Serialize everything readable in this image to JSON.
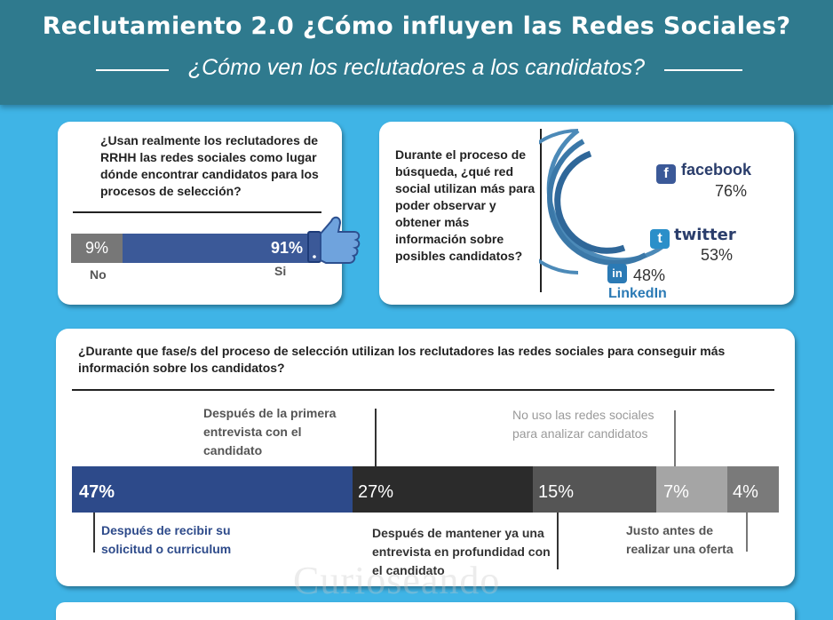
{
  "header": {
    "title": "Reclutamiento 2.0  ¿Cómo influyen las Redes Sociales?",
    "subtitle": "¿Cómo ven los reclutadores a los candidatos?"
  },
  "card_usage": {
    "question": "¿Usan realmente los reclutadores de RRHH las redes sociales como lugar dónde encontrar candidatos para los procesos de selección?",
    "no_value": "9%",
    "no_label": "No",
    "si_value": "91%",
    "si_label": "Si"
  },
  "card_networks": {
    "question": "Durante el proceso de búsqueda, ¿qué red social utilizan más para poder observar y obtener más información sobre posibles candidatos?",
    "networks": [
      {
        "name": "facebook",
        "value": "76%",
        "icon": "facebook-icon",
        "color": "#3b5998"
      },
      {
        "name": "twitter",
        "value": "53%",
        "icon": "twitter-icon",
        "color": "#2a3d6b"
      },
      {
        "name": "LinkedIn",
        "value": "48%",
        "icon": "linkedin-icon",
        "color": "#2b7ab5"
      }
    ]
  },
  "card_stages": {
    "question": "¿Durante que fase/s del proceso de selección utilizan los reclutadores las redes sociales para conseguir más información sobre los candidatos?",
    "stages": [
      {
        "value": "47%",
        "label": "Después de recibir su solicitud o curriculum",
        "color": "#2d4a8a",
        "share": 47
      },
      {
        "value": "27%",
        "label": "Después de la primera entrevista con el candidato",
        "color": "#2b2b2b",
        "share": 27
      },
      {
        "value": "15%",
        "label": "Después de mantener ya una entrevista en profundidad con el candidato",
        "color": "#555555",
        "share": 15
      },
      {
        "value": "7%",
        "label": "No uso las redes sociales para analizar candidatos",
        "color": "#a5a5a5",
        "share": 7
      },
      {
        "value": "4%",
        "label": "Justo antes de realizar una oferta",
        "color": "#7a7a7a",
        "share": 4
      }
    ]
  },
  "watermark": "Curioseando",
  "colors": {
    "background": "#3fb4e6",
    "header": "#2f7a8e",
    "bar_blue": "#3b5998",
    "bar_gray": "#777777"
  }
}
